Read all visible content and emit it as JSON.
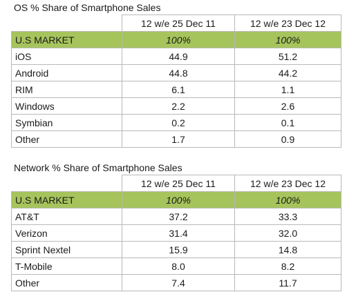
{
  "chart_data": [
    {
      "type": "table",
      "title": "OS % Share of Smartphone Sales",
      "columns": [
        "",
        "12 w/e 25 Dec 11",
        "12 w/e 23 Dec 12"
      ],
      "rows": [
        {
          "label": "U.S MARKET",
          "values": [
            "100%",
            "100%"
          ]
        },
        {
          "label": "iOS",
          "values": [
            "44.9",
            "51.2"
          ]
        },
        {
          "label": "Android",
          "values": [
            "44.8",
            "44.2"
          ]
        },
        {
          "label": "RIM",
          "values": [
            "6.1",
            "1.1"
          ]
        },
        {
          "label": "Windows",
          "values": [
            "2.2",
            "2.6"
          ]
        },
        {
          "label": "Symbian",
          "values": [
            "0.2",
            "0.1"
          ]
        },
        {
          "label": "Other",
          "values": [
            "1.7",
            "0.9"
          ]
        }
      ],
      "highlight_color": "#a6c45c"
    },
    {
      "type": "table",
      "title": "Network % Share of Smartphone Sales",
      "columns": [
        "",
        "12 w/e 25 Dec 11",
        "12 w/e 23 Dec 12"
      ],
      "rows": [
        {
          "label": "U.S MARKET",
          "values": [
            "100%",
            "100%"
          ]
        },
        {
          "label": "AT&T",
          "values": [
            "37.2",
            "33.3"
          ]
        },
        {
          "label": "Verizon",
          "values": [
            "31.4",
            "32.0"
          ]
        },
        {
          "label": "Sprint Nextel",
          "values": [
            "15.9",
            "14.8"
          ]
        },
        {
          "label": "T-Mobile",
          "values": [
            "8.0",
            "8.2"
          ]
        },
        {
          "label": "Other",
          "values": [
            "7.4",
            "11.7"
          ]
        }
      ],
      "highlight_color": "#a6c45c"
    }
  ]
}
